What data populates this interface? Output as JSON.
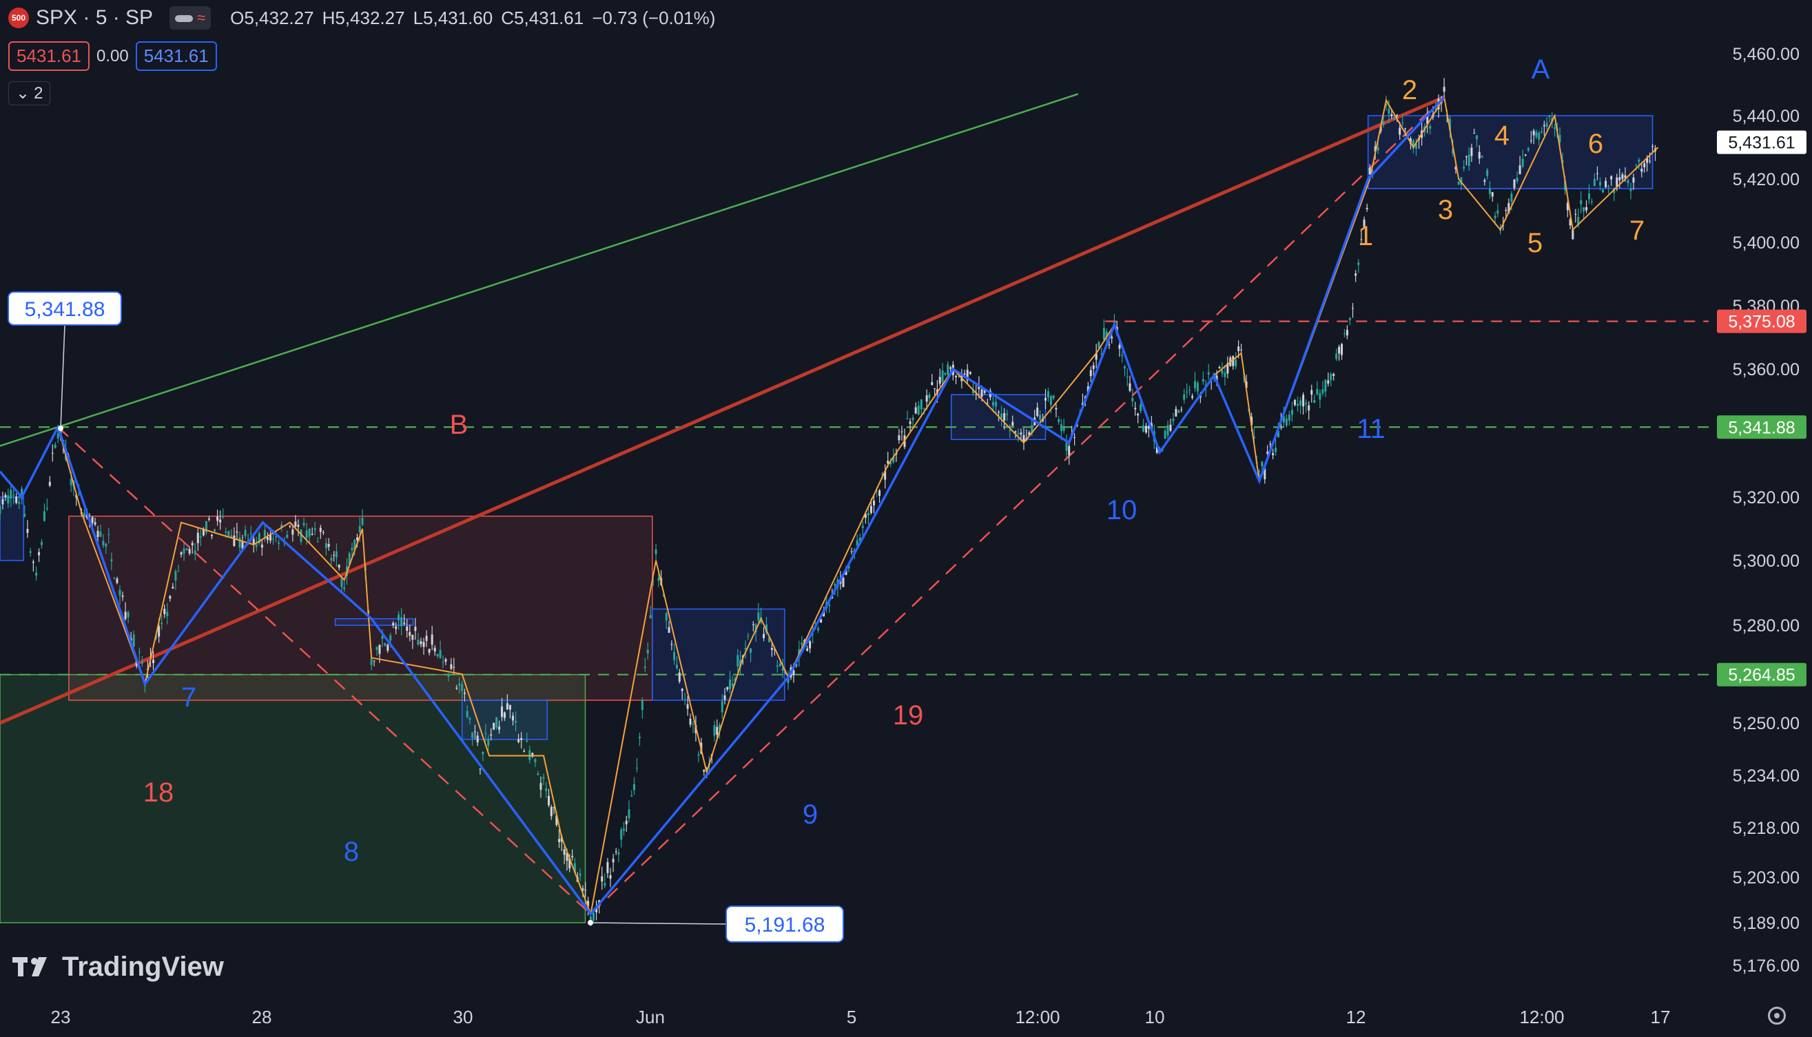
{
  "header": {
    "badge": "500",
    "symbol": "SPX · 5 · SP",
    "open": "O5,432.27",
    "high": "H5,432.27",
    "low": "L5,431.60",
    "close": "C5,431.61",
    "change": "−0.73 (−0.01%)",
    "sell_price": "5431.61",
    "spread": "0.00",
    "buy_price": "5431.61",
    "indicators_count": "2"
  },
  "brand": "TradingView",
  "colors": {
    "background": "#131722",
    "bull": "#26a69a",
    "red": "#ef5350",
    "blue": "#2962ff",
    "orange": "#f7a23b",
    "green_line": "#4caf50",
    "trend_red": "#c0392b"
  },
  "chart_data": {
    "type": "candlestick",
    "symbol": "SPX",
    "interval": "5",
    "y_axis": {
      "range": [
        5165,
        5470
      ],
      "ticks": [
        "5,460.00",
        "5,440.00",
        "5,420.00",
        "5,400.00",
        "5,380.00",
        "5,360.00",
        "5,320.00",
        "5,300.00",
        "5,280.00",
        "5,250.00",
        "5,234.00",
        "5,218.00",
        "5,203.00",
        "5,189.00",
        "5,176.00"
      ],
      "tick_values": [
        5460,
        5440,
        5420,
        5400,
        5380,
        5360,
        5320,
        5300,
        5280,
        5250,
        5234,
        5218,
        5203,
        5189,
        5176
      ]
    },
    "x_axis": {
      "ticks": [
        "23",
        "28",
        "30",
        "Jun",
        "5",
        "12:00",
        "10",
        "12",
        "12:00",
        "17"
      ]
    },
    "price_labels": [
      {
        "text": "5,431.61",
        "value": 5431.61,
        "kind": "last"
      },
      {
        "text": "5,375.08",
        "value": 5375.08,
        "kind": "red"
      },
      {
        "text": "5,341.88",
        "value": 5341.88,
        "kind": "green"
      },
      {
        "text": "5,264.85",
        "value": 5264.85,
        "kind": "green"
      }
    ],
    "callouts": [
      {
        "text": "5,341.88",
        "value": 5341.88
      },
      {
        "text": "5,191.68",
        "value": 5191.68
      }
    ],
    "wave_labels": [
      {
        "text": "A",
        "color": "blue"
      },
      {
        "text": "B",
        "color": "red"
      },
      {
        "text": "1",
        "color": "orange"
      },
      {
        "text": "2",
        "color": "orange"
      },
      {
        "text": "3",
        "color": "orange"
      },
      {
        "text": "4",
        "color": "orange"
      },
      {
        "text": "5",
        "color": "orange"
      },
      {
        "text": "6",
        "color": "orange"
      },
      {
        "text": "7",
        "color": "orange"
      },
      {
        "text": "7",
        "color": "blue"
      },
      {
        "text": "8",
        "color": "blue"
      },
      {
        "text": "9",
        "color": "blue"
      },
      {
        "text": "10",
        "color": "blue"
      },
      {
        "text": "11",
        "color": "blue"
      },
      {
        "text": "18",
        "color": "red"
      },
      {
        "text": "19",
        "color": "red"
      }
    ],
    "price_path": [
      [
        0,
        5318
      ],
      [
        0.012,
        5320
      ],
      [
        0.02,
        5295
      ],
      [
        0.032,
        5341.88
      ],
      [
        0.045,
        5315
      ],
      [
        0.06,
        5305
      ],
      [
        0.08,
        5262
      ],
      [
        0.1,
        5300
      ],
      [
        0.12,
        5312
      ],
      [
        0.14,
        5305
      ],
      [
        0.16,
        5310
      ],
      [
        0.18,
        5306
      ],
      [
        0.19,
        5294
      ],
      [
        0.2,
        5312
      ],
      [
        0.205,
        5270
      ],
      [
        0.22,
        5280
      ],
      [
        0.24,
        5274
      ],
      [
        0.255,
        5260
      ],
      [
        0.265,
        5240
      ],
      [
        0.28,
        5255
      ],
      [
        0.3,
        5230
      ],
      [
        0.31,
        5215
      ],
      [
        0.326,
        5191.68
      ],
      [
        0.34,
        5210
      ],
      [
        0.35,
        5230
      ],
      [
        0.362,
        5300
      ],
      [
        0.375,
        5262
      ],
      [
        0.39,
        5235
      ],
      [
        0.4,
        5258
      ],
      [
        0.41,
        5270
      ],
      [
        0.42,
        5282
      ],
      [
        0.435,
        5264
      ],
      [
        0.45,
        5278
      ],
      [
        0.47,
        5300
      ],
      [
        0.49,
        5330
      ],
      [
        0.51,
        5350
      ],
      [
        0.526,
        5360
      ],
      [
        0.545,
        5352
      ],
      [
        0.565,
        5337
      ],
      [
        0.58,
        5352
      ],
      [
        0.59,
        5335
      ],
      [
        0.605,
        5365
      ],
      [
        0.615,
        5374
      ],
      [
        0.625,
        5350
      ],
      [
        0.64,
        5334
      ],
      [
        0.655,
        5352
      ],
      [
        0.67,
        5358
      ],
      [
        0.685,
        5365
      ],
      [
        0.695,
        5325
      ],
      [
        0.71,
        5345
      ],
      [
        0.73,
        5352
      ],
      [
        0.745,
        5375
      ],
      [
        0.756,
        5420
      ],
      [
        0.765,
        5445
      ],
      [
        0.78,
        5430
      ],
      [
        0.797,
        5446
      ],
      [
        0.805,
        5420
      ],
      [
        0.815,
        5432
      ],
      [
        0.828,
        5404
      ],
      [
        0.845,
        5432
      ],
      [
        0.858,
        5440
      ],
      [
        0.868,
        5404
      ],
      [
        0.88,
        5418
      ],
      [
        0.9,
        5420
      ],
      [
        0.915,
        5430
      ]
    ]
  }
}
